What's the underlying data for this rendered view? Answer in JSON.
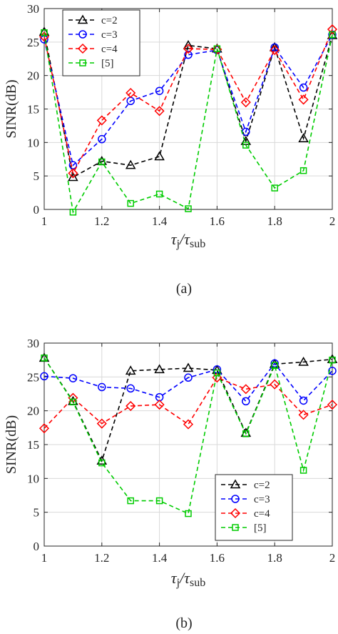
{
  "chart_data": [
    {
      "type": "line",
      "caption": "(a)",
      "ylabel": "SINR(dB)",
      "xlabel": {
        "main": "τ",
        "main_sub": "j",
        "slash": "/",
        "denom": "τ",
        "denom_sub": "sub"
      },
      "xlim": [
        1,
        2
      ],
      "ylim": [
        0,
        30
      ],
      "grid": true,
      "legend_position": "top-left",
      "x_ticks": [
        "1",
        "1.2",
        "1.4",
        "1.6",
        "1.8",
        "2"
      ],
      "y_ticks": [
        "0",
        "5",
        "10",
        "15",
        "20",
        "25",
        "30"
      ],
      "x": [
        1.0,
        1.1,
        1.2,
        1.3,
        1.4,
        1.5,
        1.6,
        1.7,
        1.8,
        1.9,
        2.0
      ],
      "series": [
        {
          "name": "c=2",
          "color": "#000000",
          "marker": "triangle",
          "values": [
            26.5,
            4.8,
            7.2,
            6.6,
            7.9,
            24.5,
            24.0,
            10.2,
            24.2,
            10.6,
            26.0
          ]
        },
        {
          "name": "c=3",
          "color": "#0000ff",
          "marker": "circle",
          "values": [
            25.4,
            6.6,
            10.5,
            16.2,
            17.7,
            23.1,
            23.8,
            11.6,
            24.2,
            18.2,
            26.1
          ]
        },
        {
          "name": "c=4",
          "color": "#ff0000",
          "marker": "diamond",
          "values": [
            25.8,
            5.4,
            13.3,
            17.4,
            14.7,
            24.0,
            23.9,
            16.0,
            23.8,
            16.4,
            26.9
          ]
        },
        {
          "name": "[5]",
          "color": "#00cc00",
          "marker": "square",
          "values": [
            26.4,
            -0.4,
            7.1,
            0.9,
            2.3,
            0.1,
            24.0,
            9.6,
            3.2,
            5.8,
            26.1
          ]
        }
      ]
    },
    {
      "type": "line",
      "caption": "(b)",
      "ylabel": "SINR(dB)",
      "xlabel": {
        "main": "τ",
        "main_sub": "j",
        "slash": "/",
        "denom": "τ",
        "denom_sub": "sub"
      },
      "xlim": [
        1,
        2
      ],
      "ylim": [
        0,
        30
      ],
      "grid": true,
      "legend_position": "bottom-right",
      "x_ticks": [
        "1",
        "1.2",
        "1.4",
        "1.6",
        "1.8",
        "2"
      ],
      "y_ticks": [
        "0",
        "5",
        "10",
        "15",
        "20",
        "25",
        "30"
      ],
      "x": [
        1.0,
        1.1,
        1.2,
        1.3,
        1.4,
        1.5,
        1.6,
        1.7,
        1.8,
        1.9,
        2.0
      ],
      "series": [
        {
          "name": "c=2",
          "color": "#000000",
          "marker": "triangle",
          "values": [
            27.8,
            21.4,
            12.6,
            25.9,
            26.1,
            26.3,
            26.0,
            16.7,
            26.9,
            27.2,
            27.6
          ]
        },
        {
          "name": "c=3",
          "color": "#0000ff",
          "marker": "circle",
          "values": [
            25.1,
            24.8,
            23.5,
            23.3,
            22.0,
            24.9,
            26.1,
            21.4,
            27.0,
            21.5,
            25.9
          ]
        },
        {
          "name": "c=4",
          "color": "#ff0000",
          "marker": "diamond",
          "values": [
            17.4,
            21.9,
            18.1,
            20.7,
            20.9,
            18.0,
            24.9,
            23.2,
            23.9,
            19.4,
            20.9
          ]
        },
        {
          "name": "[5]",
          "color": "#00cc00",
          "marker": "square",
          "values": [
            27.8,
            21.3,
            12.3,
            6.7,
            6.7,
            4.8,
            25.6,
            16.6,
            26.7,
            11.2,
            27.5
          ]
        }
      ]
    }
  ]
}
